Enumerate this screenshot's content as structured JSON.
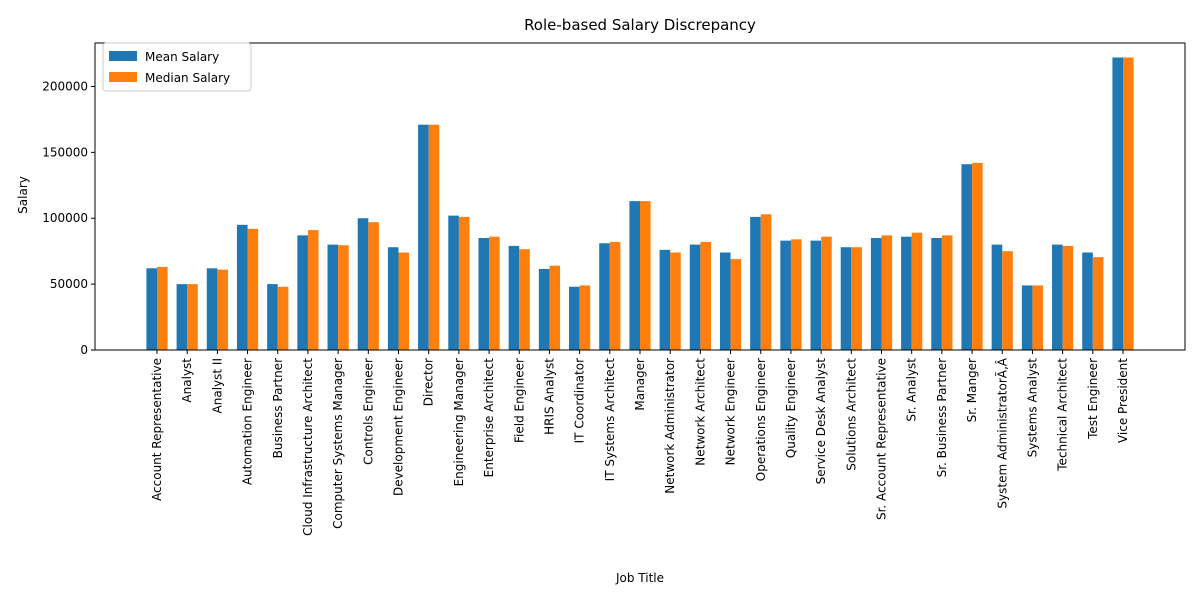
{
  "chart_data": {
    "type": "bar",
    "title": "Role-based Salary Discrepancy",
    "xlabel": "Job Title",
    "ylabel": "Salary",
    "ylim": [
      0,
      233000
    ],
    "yticks": [
      0,
      50000,
      100000,
      150000,
      200000
    ],
    "legend_position": "top-left",
    "grid": false,
    "categories": [
      "Account Representative",
      "Analyst",
      "Analyst II",
      "Automation Engineer",
      "Business Partner",
      "Cloud Infrastructure Architect",
      "Computer Systems Manager",
      "Controls Engineer",
      "Development Engineer",
      "Director",
      "Engineering Manager",
      "Enterprise Architect",
      "Field Engineer",
      "HRIS Analyst",
      "IT Coordinator",
      "IT Systems Architect",
      "Manager",
      "Network Administrator",
      "Network Architect",
      "Network Engineer",
      "Operations Engineer",
      "Quality Engineer",
      "Service Desk Analyst",
      "Solutions Architect",
      "Sr. Account Representative",
      "Sr. Analyst",
      "Sr. Business Partner",
      "Sr. Manger",
      "System AdministratorÃ‚Â",
      "Systems Analyst",
      "Technical Architect",
      "Test Engineer",
      "Vice President"
    ],
    "series": [
      {
        "name": "Mean Salary",
        "color": "#1f77b4",
        "values": [
          62000,
          50000,
          62000,
          95000,
          50000,
          87000,
          80000,
          100000,
          78000,
          171000,
          102000,
          85000,
          79000,
          61500,
          48000,
          81000,
          113000,
          76000,
          80000,
          74000,
          101000,
          83000,
          83000,
          78000,
          85000,
          86000,
          85000,
          141000,
          80000,
          49000,
          80000,
          74000,
          222000
        ]
      },
      {
        "name": "Median Salary",
        "color": "#ff7f0e",
        "values": [
          63000,
          50000,
          61000,
          92000,
          48000,
          91000,
          79500,
          97000,
          74000,
          171000,
          101000,
          86000,
          76500,
          64000,
          49000,
          82000,
          113000,
          74000,
          82000,
          69000,
          103000,
          84000,
          86000,
          78000,
          87000,
          89000,
          87000,
          142000,
          75000,
          49000,
          79000,
          70500,
          222000
        ]
      }
    ]
  }
}
